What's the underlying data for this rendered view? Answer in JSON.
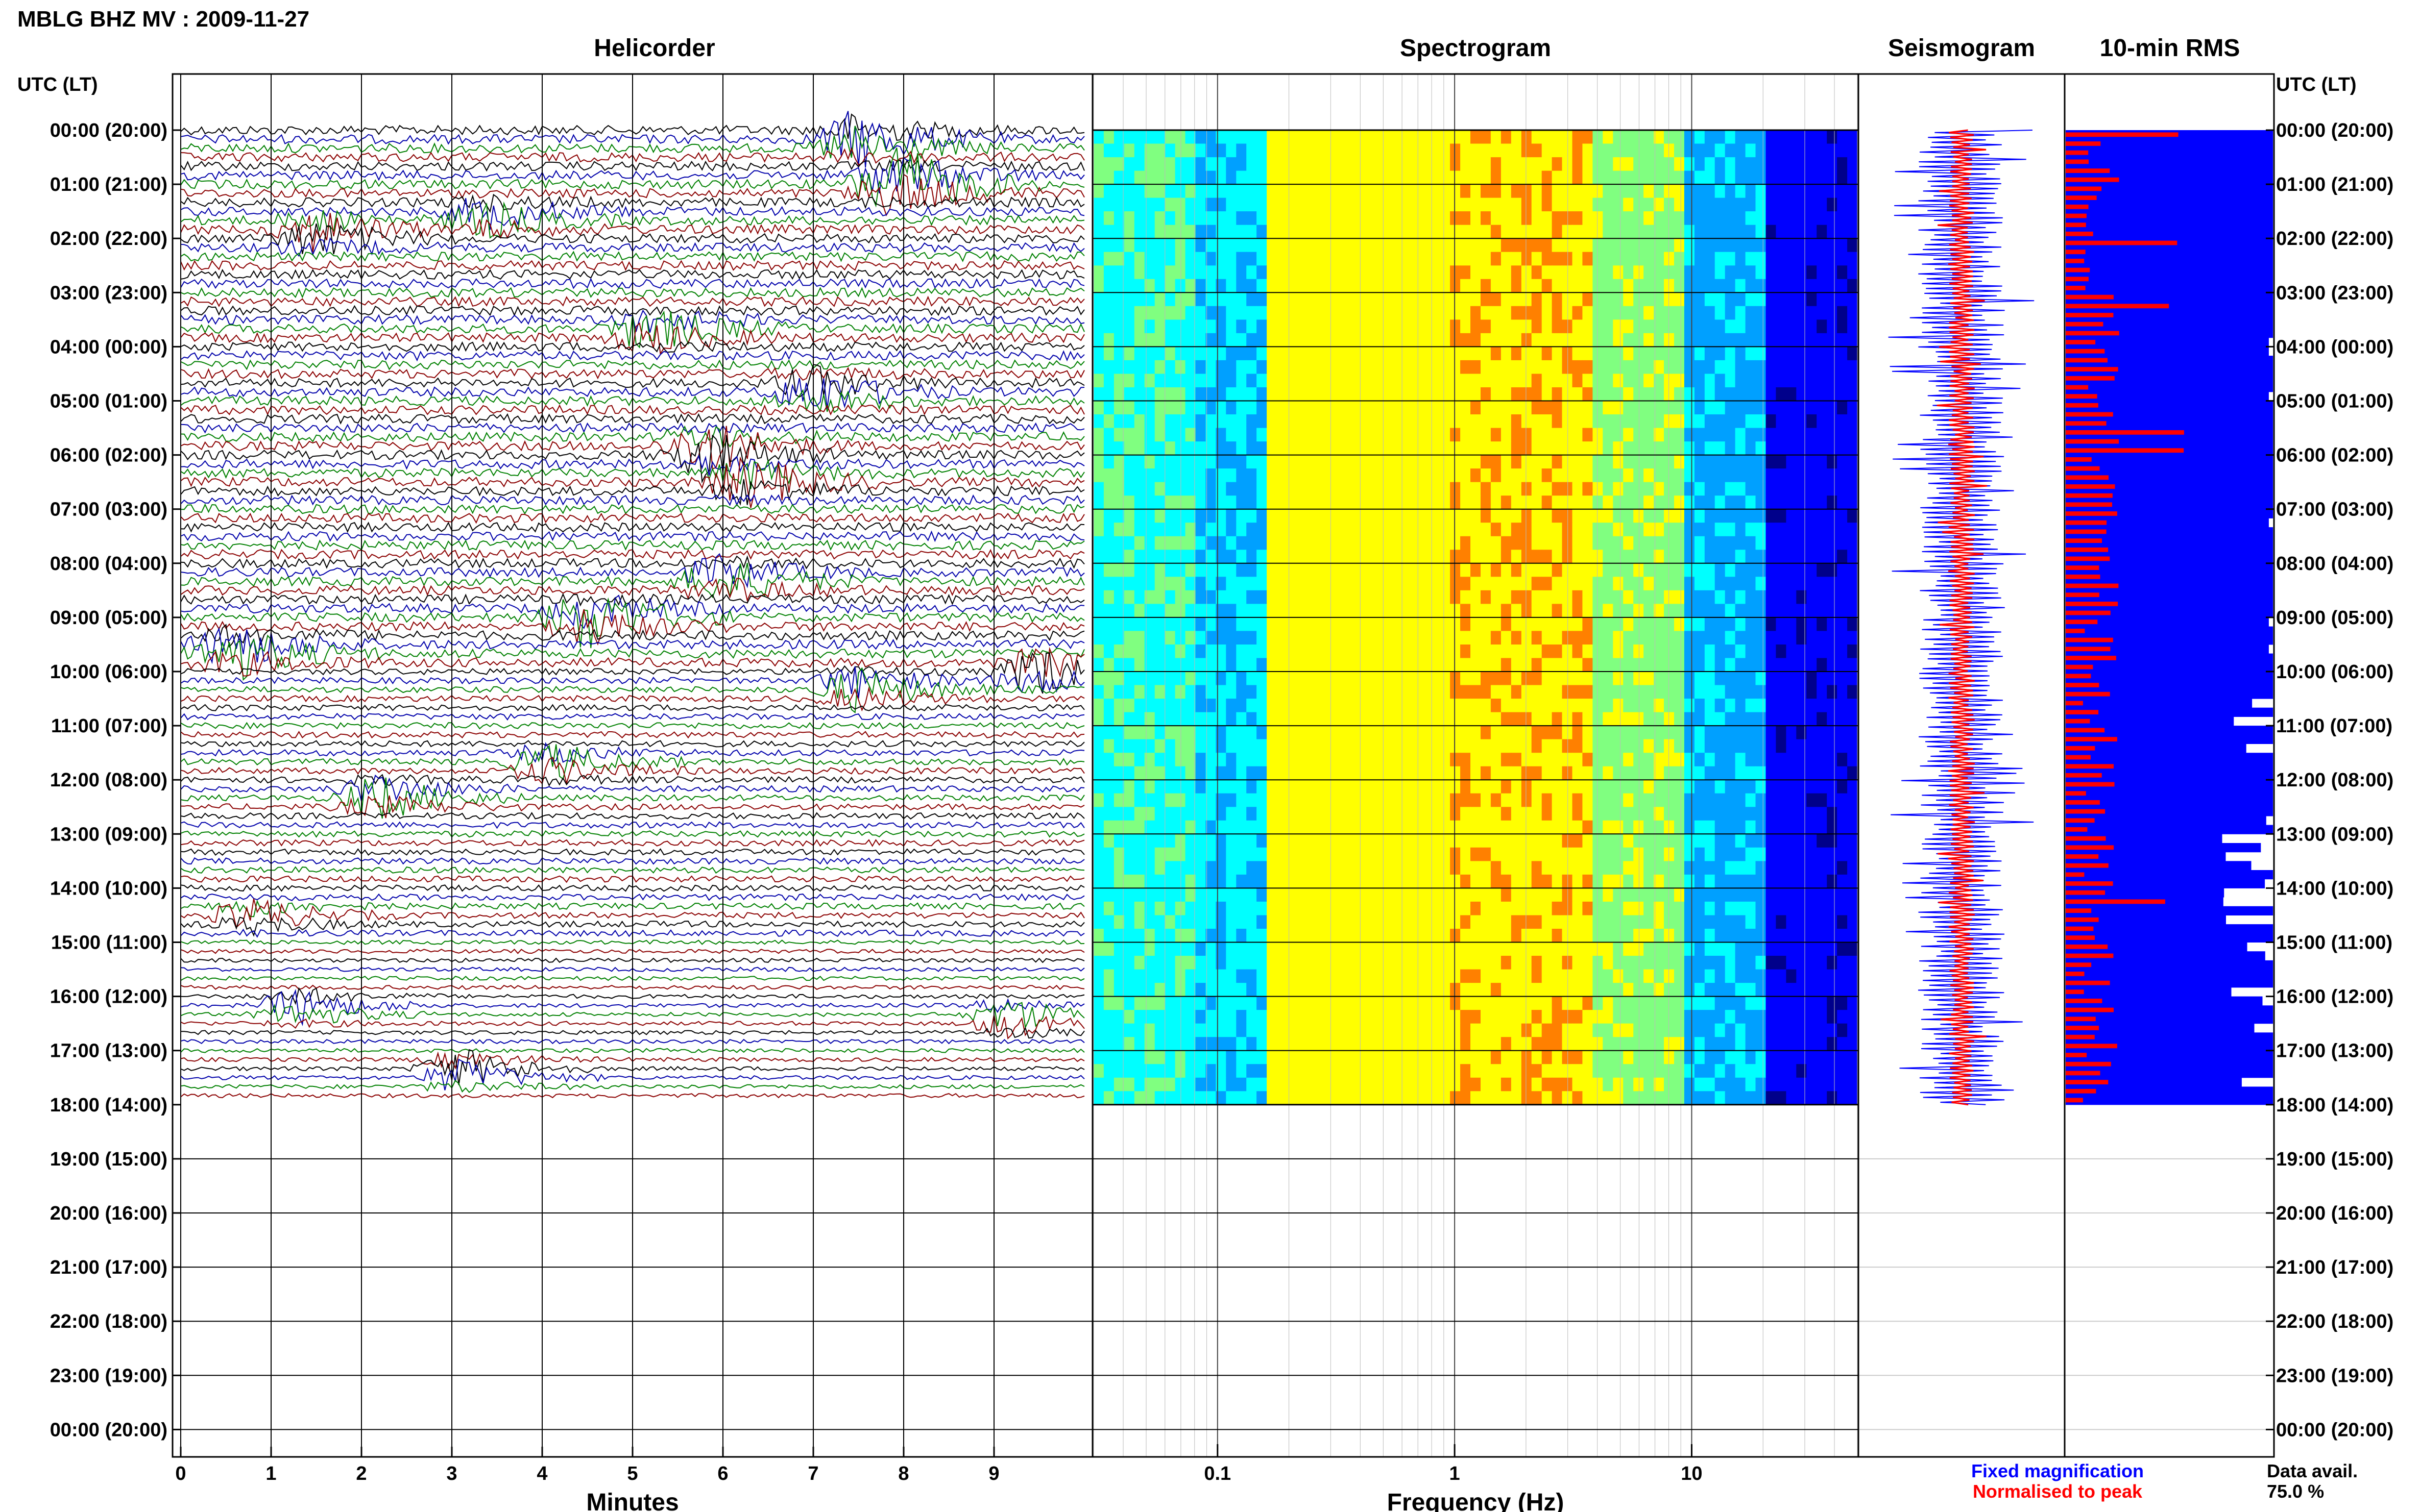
{
  "title": "MBLG BHZ MV : 2009-11-27",
  "utc_label": "UTC (LT)",
  "legend": {
    "fixed": {
      "label": "Fixed magnification",
      "color": "#0000ff"
    },
    "normalised": {
      "label": "Normalised to peak",
      "color": "#ff0000"
    },
    "avail_label": "Data avail.",
    "avail_value": "75.0 %"
  },
  "chart_data": [
    {
      "type": "line",
      "title": "Helicorder",
      "xlabel": "Minutes",
      "xlim": [
        0,
        10
      ],
      "x_ticks": [
        0,
        1,
        2,
        3,
        4,
        5,
        6,
        7,
        8,
        9
      ],
      "row_labels": [
        "00:00 (20:00)",
        "01:00 (21:00)",
        "02:00 (22:00)",
        "03:00 (23:00)",
        "04:00 (00:00)",
        "05:00 (01:00)",
        "06:00 (02:00)",
        "07:00 (03:00)",
        "08:00 (04:00)",
        "09:00 (05:00)",
        "10:00 (06:00)",
        "11:00 (07:00)",
        "12:00 (08:00)",
        "13:00 (09:00)",
        "14:00 (10:00)",
        "15:00 (11:00)",
        "16:00 (12:00)",
        "17:00 (13:00)",
        "18:00 (14:00)",
        "19:00 (15:00)",
        "20:00 (16:00)",
        "21:00 (17:00)",
        "22:00 (18:00)",
        "23:00 (19:00)",
        "00:00 (20:00)"
      ],
      "traces_per_hour": 6,
      "data_hours": 18,
      "trace_colors": [
        "#000000",
        "#0000aa",
        "#008000",
        "#8b0000"
      ],
      "events": [
        {
          "hour": 0.2,
          "min": 7.5,
          "amp": 4
        },
        {
          "hour": 1.0,
          "min": 7.9,
          "amp": 5
        },
        {
          "hour": 1.9,
          "min": 1.5,
          "amp": 3
        },
        {
          "hour": 1.6,
          "min": 3.4,
          "amp": 2.5
        },
        {
          "hour": 3.7,
          "min": 5.2,
          "amp": 3
        },
        {
          "hour": 4.8,
          "min": 7.0,
          "amp": 3
        },
        {
          "hour": 5.9,
          "min": 5.8,
          "amp": 4
        },
        {
          "hour": 6.5,
          "min": 6.3,
          "amp": 3
        },
        {
          "hour": 8.3,
          "min": 6.0,
          "amp": 3
        },
        {
          "hour": 9.0,
          "min": 4.5,
          "amp": 4
        },
        {
          "hour": 9.6,
          "min": 0.6,
          "amp": 4
        },
        {
          "hour": 10.0,
          "min": 9.5,
          "amp": 3
        },
        {
          "hour": 10.3,
          "min": 7.5,
          "amp": 3
        },
        {
          "hour": 11.7,
          "min": 4.1,
          "amp": 2.5
        },
        {
          "hour": 12.3,
          "min": 2.2,
          "amp": 3
        },
        {
          "hour": 14.5,
          "min": 0.8,
          "amp": 2
        },
        {
          "hour": 16.2,
          "min": 1.3,
          "amp": 2.5
        },
        {
          "hour": 16.4,
          "min": 9.2,
          "amp": 2.5
        },
        {
          "hour": 17.4,
          "min": 3.1,
          "amp": 3
        }
      ]
    },
    {
      "type": "heatmap",
      "title": "Spectrogram",
      "xlabel": "Frequency (Hz)",
      "x_scale": "log",
      "xlim": [
        0.03,
        50
      ],
      "x_ticks": [
        0.1,
        1,
        10
      ],
      "x_tick_labels": [
        "0.1",
        "1",
        "10"
      ],
      "data_hours": 18,
      "colormap": [
        "#00008b",
        "#0000ff",
        "#00a0ff",
        "#00ffff",
        "#80ff80",
        "#ffff00",
        "#ff8000",
        "#ff0000"
      ]
    },
    {
      "type": "line",
      "title": "Seismogram",
      "data_hours": 18,
      "series": [
        {
          "name": "Fixed magnification",
          "color": "#0000ff"
        },
        {
          "name": "Normalised to peak",
          "color": "#ff0000"
        }
      ]
    },
    {
      "type": "bar",
      "title": "10-min RMS",
      "orientation": "horizontal",
      "data_hours": 18,
      "bins_per_hour": 6,
      "avail_value": "75.0 %",
      "series": [
        {
          "name": "Fixed magnification",
          "color": "#0000ff"
        },
        {
          "name": "Normalised to peak",
          "color": "#ff0000"
        }
      ]
    }
  ]
}
